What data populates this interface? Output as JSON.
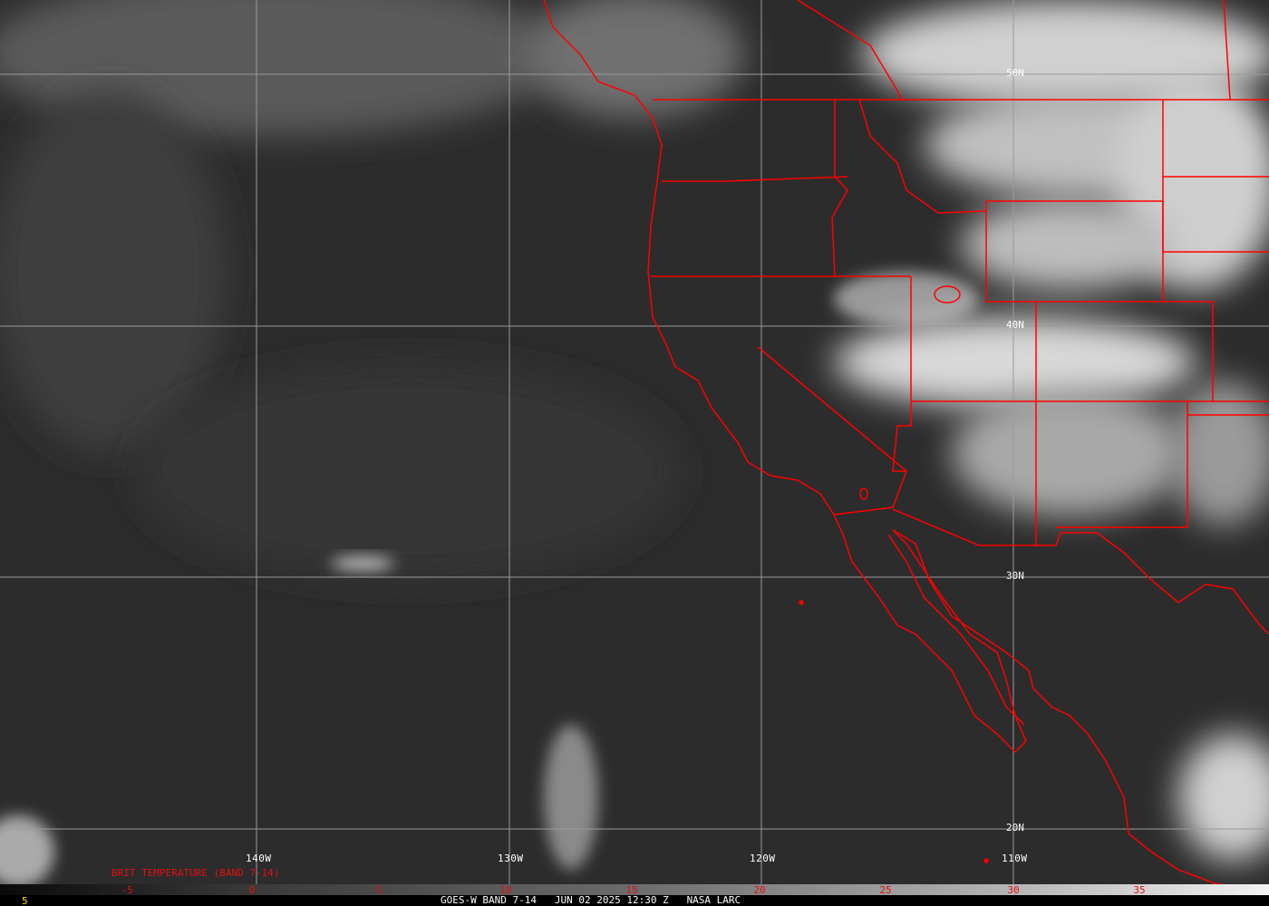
{
  "image": {
    "product": "GOES-W BAND 7-14",
    "date": "JUN 02 2025",
    "time": "12:30 Z",
    "source": "NASA LARC",
    "legend_title": "BRIT TEMPERATURE (BAND 7-14)",
    "footer_left": "5"
  },
  "longitude_labels": [
    "140W",
    "130W",
    "120W",
    "110W"
  ],
  "latitude_labels": [
    "50N",
    "40N",
    "30N",
    "20N"
  ],
  "scale_ticks": [
    "-5",
    "0",
    "5",
    "10",
    "15",
    "20",
    "25",
    "30",
    "35"
  ],
  "colors": {
    "borders": "#ff0000",
    "grid": "#9a9a9a",
    "scale_text": "#e01010",
    "footer_text": "#ffffff",
    "footer_left": "#ffe000"
  }
}
